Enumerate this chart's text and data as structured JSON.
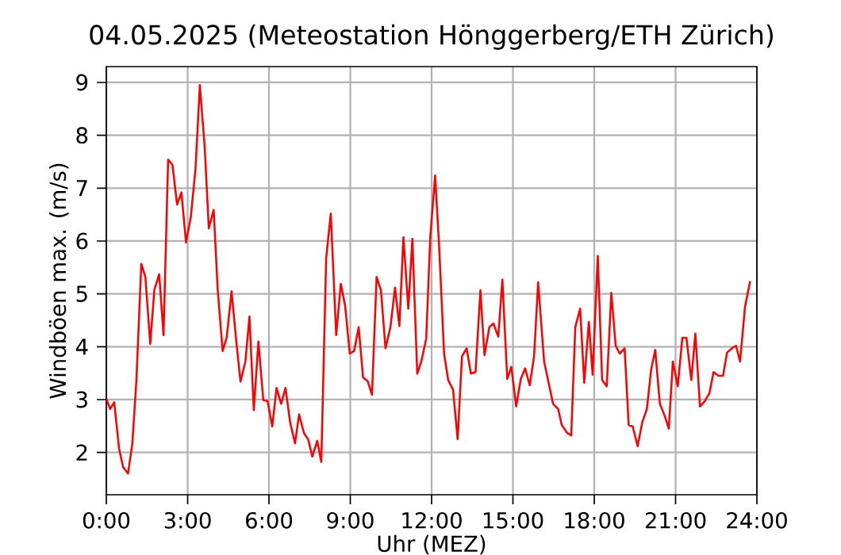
{
  "chart_data": {
    "type": "line",
    "title": "04.05.2025  (Meteostation Hönggerberg/ETH Zürich)",
    "xlabel": "Uhr (MEZ)",
    "ylabel": "Windböen max. (m/s)",
    "xlim": [
      0,
      24
    ],
    "ylim": [
      1.2,
      9.3
    ],
    "xticks": [
      {
        "value": 0,
        "label": "0:00"
      },
      {
        "value": 3,
        "label": "3:00"
      },
      {
        "value": 6,
        "label": "6:00"
      },
      {
        "value": 9,
        "label": "9:00"
      },
      {
        "value": 12,
        "label": "12:00"
      },
      {
        "value": 15,
        "label": "15:00"
      },
      {
        "value": 18,
        "label": "18:00"
      },
      {
        "value": 21,
        "label": "21:00"
      },
      {
        "value": 24,
        "label": "24:00"
      }
    ],
    "yticks": [
      2,
      3,
      4,
      5,
      6,
      7,
      8,
      9
    ],
    "grid": true,
    "marker": "none",
    "line_style": "solid",
    "series": [
      {
        "color": "#ff0000",
        "x": [
          0,
          0.14,
          0.29,
          0.47,
          0.62,
          0.8,
          0.96,
          1.11,
          1.29,
          1.44,
          1.62,
          1.77,
          1.95,
          2.11,
          2.28,
          2.44,
          2.61,
          2.77,
          2.94,
          3.12,
          3.29,
          3.45,
          3.63,
          3.78,
          3.96,
          4.11,
          4.29,
          4.44,
          4.62,
          4.8,
          4.95,
          5.13,
          5.28,
          5.44,
          5.61,
          5.79,
          5.95,
          6.12,
          6.28,
          6.45,
          6.61,
          6.78,
          6.96,
          7.11,
          7.29,
          7.45,
          7.6,
          7.78,
          7.93,
          8.11,
          8.28,
          8.48,
          8.65,
          8.81,
          8.98,
          9.14,
          9.31,
          9.47,
          9.64,
          9.8,
          9.97,
          10.13,
          10.3,
          10.48,
          10.65,
          10.81,
          10.96,
          11.14,
          11.29,
          11.47,
          11.62,
          11.8,
          11.95,
          12.13,
          12.28,
          12.46,
          12.61,
          12.79,
          12.96,
          13.12,
          13.29,
          13.45,
          13.62,
          13.8,
          13.95,
          14.13,
          14.28,
          14.46,
          14.61,
          14.79,
          14.94,
          15.12,
          15.29,
          15.45,
          15.62,
          15.78,
          15.93,
          16.15,
          16.48,
          16.67,
          16.8,
          17.0,
          17.15,
          17.3,
          17.48,
          17.63,
          17.8,
          17.94,
          18.13,
          18.29,
          18.46,
          18.63,
          18.79,
          18.94,
          19.12,
          19.27,
          19.42,
          19.6,
          19.77,
          19.94,
          20.1,
          20.25,
          20.42,
          20.6,
          20.75,
          20.9,
          21.08,
          21.25,
          21.4,
          21.58,
          21.73,
          21.9,
          22.08,
          22.25,
          22.4,
          22.58,
          22.75,
          22.9,
          23.08,
          23.23,
          23.38,
          23.56,
          23.75
        ],
        "values": [
          3.02,
          2.82,
          2.95,
          2.07,
          1.72,
          1.6,
          2.17,
          3.37,
          5.57,
          5.32,
          4.05,
          5.07,
          5.37,
          4.22,
          7.54,
          7.44,
          6.69,
          6.92,
          5.97,
          6.47,
          7.37,
          8.95,
          7.77,
          6.24,
          6.59,
          5.07,
          3.92,
          4.17,
          5.05,
          4.07,
          3.34,
          3.72,
          4.57,
          2.8,
          4.1,
          2.99,
          2.97,
          2.49,
          3.22,
          2.92,
          3.22,
          2.57,
          2.17,
          2.72,
          2.37,
          2.24,
          1.92,
          2.22,
          1.82,
          5.67,
          6.52,
          4.22,
          5.19,
          4.77,
          3.87,
          3.92,
          4.37,
          3.42,
          3.35,
          3.09,
          5.32,
          5.07,
          3.97,
          4.37,
          5.12,
          4.39,
          6.07,
          4.72,
          6.04,
          3.49,
          3.72,
          4.15,
          6.07,
          7.24,
          5.87,
          3.87,
          3.37,
          3.19,
          2.25,
          3.82,
          3.97,
          3.49,
          3.52,
          5.07,
          3.84,
          4.37,
          4.44,
          4.19,
          5.27,
          3.39,
          3.62,
          2.87,
          3.39,
          3.59,
          3.27,
          3.82,
          5.22,
          3.72,
          2.92,
          2.82,
          2.52,
          2.37,
          2.32,
          4.37,
          4.72,
          3.32,
          4.47,
          3.47,
          5.72,
          3.37,
          3.25,
          5.02,
          4.02,
          3.87,
          3.97,
          2.52,
          2.49,
          2.12,
          2.57,
          2.82,
          3.57,
          3.94,
          2.92,
          2.69,
          2.45,
          3.72,
          3.25,
          4.17,
          4.17,
          3.37,
          4.25,
          2.87,
          2.97,
          3.12,
          3.52,
          3.45,
          3.45,
          3.89,
          3.97,
          4.02,
          3.72,
          4.75,
          5.24
        ]
      }
    ]
  }
}
